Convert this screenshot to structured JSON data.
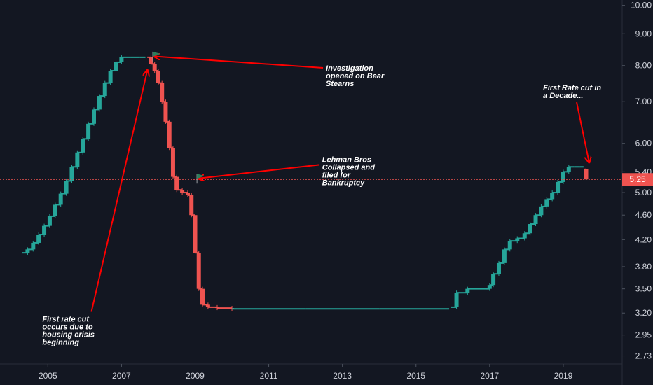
{
  "chart_data": {
    "type": "bar",
    "title": "",
    "xlabel": "",
    "ylabel": "",
    "y_scale": "log",
    "ylim": [
      2.65,
      10.2
    ],
    "xlim": [
      2003.7,
      2020.6
    ],
    "grid": false,
    "y_ticks": [
      "10.00",
      "9.00",
      "8.00",
      "7.00",
      "6.00",
      "5.40",
      "5.00",
      "4.60",
      "4.20",
      "3.80",
      "3.50",
      "3.20",
      "2.95",
      "2.73"
    ],
    "x_ticks": [
      "2005",
      "2007",
      "2009",
      "2011",
      "2013",
      "2015",
      "2017",
      "2019"
    ],
    "last_price": "5.25",
    "colors": {
      "up": "#26a69a",
      "down": "#ef5350",
      "background": "#131722",
      "axis_text": "#d1d4dc",
      "annotation": "#ff0000",
      "flag": "#2e7d5b"
    },
    "series": [
      {
        "direction": "up",
        "points": [
          [
            2004.3,
            4.0
          ],
          [
            2004.45,
            4.05
          ],
          [
            2004.6,
            4.15
          ],
          [
            2004.75,
            4.28
          ],
          [
            2004.9,
            4.42
          ],
          [
            2005.05,
            4.58
          ],
          [
            2005.2,
            4.78
          ],
          [
            2005.35,
            4.98
          ],
          [
            2005.5,
            5.22
          ],
          [
            2005.65,
            5.5
          ],
          [
            2005.8,
            5.8
          ],
          [
            2005.95,
            6.1
          ],
          [
            2006.1,
            6.45
          ],
          [
            2006.25,
            6.8
          ],
          [
            2006.4,
            7.15
          ],
          [
            2006.55,
            7.5
          ],
          [
            2006.7,
            7.85
          ],
          [
            2006.85,
            8.1
          ],
          [
            2007.0,
            8.25
          ],
          [
            2007.25,
            8.25
          ],
          [
            2007.5,
            8.25
          ],
          [
            2007.65,
            8.25
          ]
        ]
      },
      {
        "direction": "down",
        "points": [
          [
            2007.7,
            8.25
          ],
          [
            2007.8,
            8.05
          ],
          [
            2007.9,
            7.85
          ],
          [
            2008.0,
            7.5
          ],
          [
            2008.1,
            7.0
          ],
          [
            2008.2,
            6.5
          ],
          [
            2008.3,
            5.9
          ],
          [
            2008.4,
            5.3
          ],
          [
            2008.5,
            5.05
          ],
          [
            2008.65,
            5.0
          ],
          [
            2008.8,
            4.95
          ],
          [
            2008.9,
            4.6
          ],
          [
            2009.0,
            4.0
          ],
          [
            2009.1,
            3.5
          ],
          [
            2009.2,
            3.3
          ],
          [
            2009.35,
            3.27
          ],
          [
            2009.6,
            3.26
          ],
          [
            2010.0,
            3.25
          ]
        ]
      },
      {
        "direction": "flat",
        "points": [
          [
            2010.0,
            3.25
          ],
          [
            2012.0,
            3.25
          ],
          [
            2014.0,
            3.25
          ],
          [
            2015.9,
            3.25
          ]
        ]
      },
      {
        "direction": "up",
        "points": [
          [
            2015.95,
            3.27
          ],
          [
            2016.1,
            3.45
          ],
          [
            2016.4,
            3.5
          ],
          [
            2016.9,
            3.5
          ],
          [
            2017.0,
            3.55
          ],
          [
            2017.1,
            3.7
          ],
          [
            2017.25,
            3.85
          ],
          [
            2017.4,
            4.05
          ],
          [
            2017.55,
            4.18
          ],
          [
            2017.75,
            4.22
          ],
          [
            2017.95,
            4.3
          ],
          [
            2018.1,
            4.45
          ],
          [
            2018.25,
            4.6
          ],
          [
            2018.4,
            4.75
          ],
          [
            2018.55,
            4.88
          ],
          [
            2018.7,
            5.0
          ],
          [
            2018.85,
            5.2
          ],
          [
            2019.0,
            5.4
          ],
          [
            2019.15,
            5.5
          ],
          [
            2019.3,
            5.5
          ],
          [
            2019.45,
            5.5
          ],
          [
            2019.55,
            5.5
          ]
        ]
      },
      {
        "direction": "down",
        "points": [
          [
            2019.58,
            5.45
          ],
          [
            2019.62,
            5.25
          ]
        ]
      }
    ],
    "annotations": [
      {
        "id": "bear-stearns",
        "text": [
          "Investigation",
          "opened on Bear",
          "Stearns"
        ],
        "x": 2012.55,
        "y": 7.85,
        "arrow_to": [
          2007.9,
          8.28
        ]
      },
      {
        "id": "lehman",
        "text": [
          "Lehman Bros",
          "Collapsed and",
          "filed for",
          "Bankruptcy"
        ],
        "x": 2012.45,
        "y": 5.6,
        "arrow_to": [
          2009.1,
          5.27
        ]
      },
      {
        "id": "first-cut-decade",
        "text": [
          "First Rate cut in",
          "a Decade..."
        ],
        "x": 2018.45,
        "y": 7.3,
        "arrow_to": [
          2019.7,
          5.6
        ]
      },
      {
        "id": "first-rate-cut",
        "text": [
          "First rate cut",
          "occurs due to",
          "housing crisis",
          "beginning"
        ],
        "x": 2004.85,
        "y": 3.1,
        "arrow_to": [
          2007.7,
          7.85
        ]
      }
    ],
    "flags": [
      {
        "id": "flag-bear",
        "x": 2007.85,
        "y": 8.25
      },
      {
        "id": "flag-lehman",
        "x": 2009.05,
        "y": 5.25
      }
    ]
  }
}
